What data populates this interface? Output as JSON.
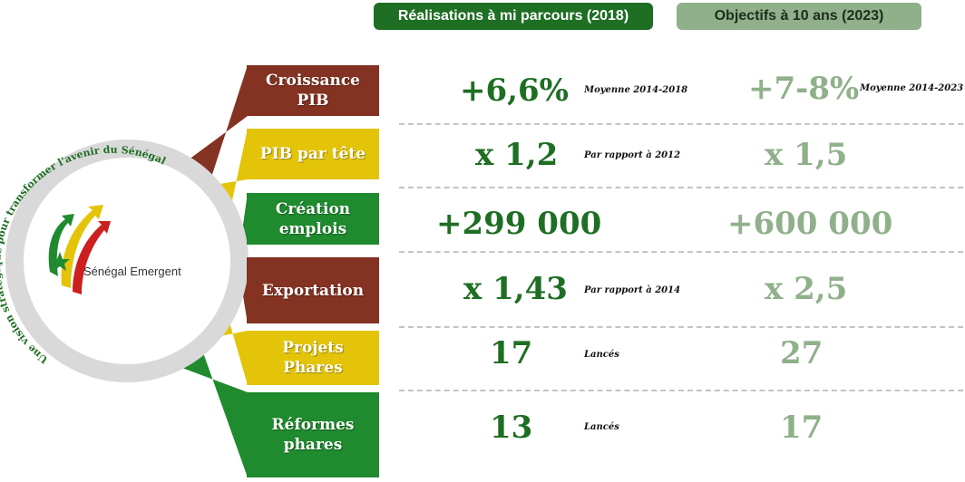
{
  "headers": {
    "achievements": "Réalisations à mi parcours (2018)",
    "objectives": "Objectifs à 10 ans (2023)"
  },
  "logo": {
    "name": "Sénégal Emergent",
    "arc_text": "Une vision stratégique pour transformer l'avenir du Sénégal"
  },
  "colors": {
    "dark_green": "#1e6e23",
    "light_green": "#8fb08a",
    "brown": "#843222",
    "yellow": "#e3c408",
    "green": "#1f8a2e"
  },
  "rows": [
    {
      "label": "Croissance PIB",
      "color": "brown",
      "achieved": "+6,6%",
      "achieved_note": "Moyenne 2014-2018",
      "target": "+7-8%",
      "target_note": "Moyenne 2014-2023"
    },
    {
      "label": "PIB par tête",
      "color": "yellow",
      "achieved": "x 1,2",
      "achieved_note": "Par rapport à 2012",
      "target": "x 1,5",
      "target_note": ""
    },
    {
      "label": "Création emplois",
      "color": "green",
      "achieved": "+299 000",
      "achieved_note": "",
      "target": "+600 000",
      "target_note": ""
    },
    {
      "label": "Exportation",
      "color": "brown",
      "achieved": "x 1,43",
      "achieved_note": "Par rapport à 2014",
      "target": "x 2,5",
      "target_note": ""
    },
    {
      "label": "Projets Phares",
      "color": "yellow",
      "achieved": "17",
      "achieved_note": "Lancés",
      "target": "27",
      "target_note": ""
    },
    {
      "label": "Réformes phares",
      "color": "green",
      "achieved": "13",
      "achieved_note": "Lancés",
      "target": "17",
      "target_note": ""
    }
  ]
}
